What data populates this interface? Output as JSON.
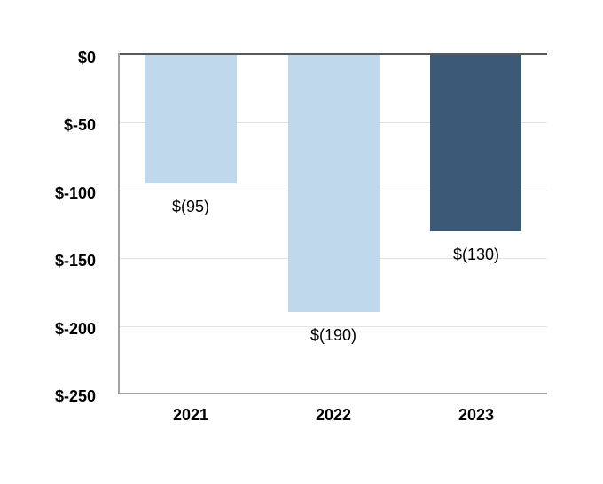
{
  "chart_data": {
    "type": "bar",
    "title": "",
    "xlabel": "",
    "ylabel": "",
    "categories": [
      "2021",
      "2022",
      "2023"
    ],
    "series": [
      {
        "name": "values",
        "values": [
          -95,
          -190,
          -130
        ],
        "data_labels": [
          "$(95)",
          "$(190)",
          "$(130)"
        ],
        "bar_colors": [
          "#BFD8EB",
          "#BFD8EB",
          "#3C5A78"
        ]
      }
    ],
    "ylim": [
      -250,
      0
    ],
    "y_ticks": [
      {
        "value": 0,
        "label": "$0"
      },
      {
        "value": -50,
        "label": "$-50"
      },
      {
        "value": -100,
        "label": "$-100"
      },
      {
        "value": -150,
        "label": "$-150"
      },
      {
        "value": -200,
        "label": "$-200"
      },
      {
        "value": -250,
        "label": "$-250"
      }
    ],
    "grid": true,
    "legend_position": "none"
  },
  "colors": {
    "light_bar": "#BFD8EB",
    "dark_bar": "#3C5A78",
    "gridline": "#E3E3E3",
    "axis_line": "#A3A3A3",
    "zero_line": "#595959",
    "text": "#000000",
    "background": "#FFFFFF"
  }
}
